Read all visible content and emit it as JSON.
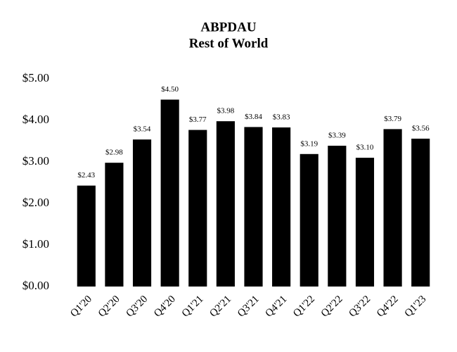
{
  "chart_data": {
    "type": "bar",
    "title": "ABPDAU",
    "subtitle": "Rest of World",
    "categories": [
      "Q1'20",
      "Q2'20",
      "Q3'20",
      "Q4'20",
      "Q1'21",
      "Q2'21",
      "Q3'21",
      "Q4'21",
      "Q1'22",
      "Q2'22",
      "Q3'22",
      "Q4'22",
      "Q1'23"
    ],
    "values": [
      2.43,
      2.98,
      3.54,
      4.5,
      3.77,
      3.98,
      3.84,
      3.83,
      3.19,
      3.39,
      3.1,
      3.79,
      3.56
    ],
    "value_labels": [
      "$2.43",
      "$2.98",
      "$3.54",
      "$4.50",
      "$3.77",
      "$3.98",
      "$3.84",
      "$3.83",
      "$3.19",
      "$3.39",
      "$3.10",
      "$3.79",
      "$3.56"
    ],
    "color": "#000000",
    "ylim": [
      0,
      5
    ],
    "yticks": [
      {
        "value": 0,
        "label": "$0.00"
      },
      {
        "value": 1,
        "label": "$1.00"
      },
      {
        "value": 2,
        "label": "$2.00"
      },
      {
        "value": 3,
        "label": "$3.00"
      },
      {
        "value": 4,
        "label": "$4.00"
      },
      {
        "value": 5,
        "label": "$5.00"
      }
    ],
    "grid": false
  }
}
